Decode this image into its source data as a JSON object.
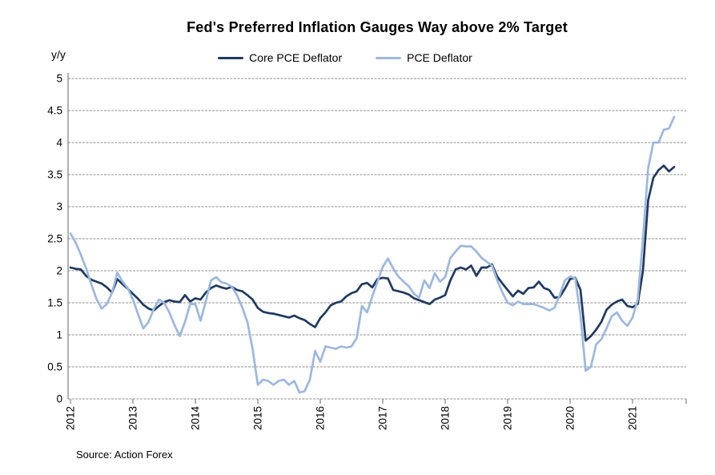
{
  "chart_data": {
    "type": "line",
    "title": "Fed's Preferred Inflation Gauges Way above 2% Target",
    "y_axis_label": "y/y",
    "source": "Source: Action Forex",
    "ylim": [
      0,
      5
    ],
    "y_ticks": [
      "0",
      "0.5",
      "1",
      "1.5",
      "2",
      "2.5",
      "3",
      "3.5",
      "4",
      "4.5",
      "5"
    ],
    "x_ticks": [
      "2012",
      "2013",
      "2014",
      "2015",
      "2016",
      "2017",
      "2018",
      "2019",
      "2020",
      "2021"
    ],
    "x_start": "2012-01",
    "frequency": "monthly",
    "grid": true,
    "legend_position": "top-center",
    "background_color": "#ffffff",
    "series": [
      {
        "name": "Core PCE Deflator",
        "color": "#1F3A5F",
        "values": [
          2.05,
          2.03,
          2.02,
          1.92,
          1.86,
          1.83,
          1.8,
          1.74,
          1.66,
          1.87,
          1.79,
          1.72,
          1.64,
          1.56,
          1.47,
          1.41,
          1.38,
          1.45,
          1.51,
          1.54,
          1.52,
          1.51,
          1.62,
          1.52,
          1.57,
          1.55,
          1.66,
          1.73,
          1.77,
          1.74,
          1.72,
          1.75,
          1.7,
          1.68,
          1.62,
          1.55,
          1.42,
          1.36,
          1.34,
          1.33,
          1.31,
          1.29,
          1.27,
          1.3,
          1.26,
          1.23,
          1.17,
          1.12,
          1.26,
          1.35,
          1.46,
          1.5,
          1.52,
          1.6,
          1.65,
          1.68,
          1.79,
          1.81,
          1.74,
          1.87,
          1.89,
          1.88,
          1.7,
          1.68,
          1.66,
          1.63,
          1.57,
          1.54,
          1.51,
          1.48,
          1.55,
          1.58,
          1.62,
          1.85,
          2.02,
          2.05,
          2.02,
          2.08,
          1.92,
          2.05,
          2.05,
          2.1,
          1.91,
          1.8,
          1.7,
          1.6,
          1.69,
          1.64,
          1.73,
          1.74,
          1.83,
          1.73,
          1.7,
          1.58,
          1.59,
          1.72,
          1.87,
          1.89,
          1.7,
          0.91,
          0.98,
          1.08,
          1.2,
          1.39,
          1.47,
          1.52,
          1.55,
          1.45,
          1.43,
          1.48,
          2.0,
          3.1,
          3.45,
          3.57,
          3.64,
          3.55,
          3.62
        ]
      },
      {
        "name": "PCE Deflator",
        "color": "#9CB8DE",
        "values": [
          2.58,
          2.44,
          2.25,
          2.04,
          1.79,
          1.56,
          1.41,
          1.48,
          1.66,
          1.97,
          1.83,
          1.73,
          1.55,
          1.32,
          1.1,
          1.2,
          1.4,
          1.55,
          1.5,
          1.35,
          1.15,
          0.98,
          1.2,
          1.48,
          1.48,
          1.22,
          1.52,
          1.85,
          1.9,
          1.82,
          1.8,
          1.75,
          1.62,
          1.43,
          1.2,
          0.78,
          0.22,
          0.3,
          0.28,
          0.22,
          0.28,
          0.3,
          0.22,
          0.28,
          0.1,
          0.12,
          0.3,
          0.75,
          0.58,
          0.82,
          0.8,
          0.78,
          0.82,
          0.8,
          0.82,
          0.95,
          1.45,
          1.35,
          1.6,
          1.83,
          2.06,
          2.19,
          2.04,
          1.91,
          1.83,
          1.76,
          1.64,
          1.58,
          1.85,
          1.73,
          1.96,
          1.83,
          1.9,
          2.2,
          2.3,
          2.39,
          2.38,
          2.38,
          2.3,
          2.2,
          2.14,
          2.08,
          1.85,
          1.66,
          1.5,
          1.46,
          1.52,
          1.48,
          1.48,
          1.48,
          1.45,
          1.42,
          1.38,
          1.42,
          1.62,
          1.85,
          1.91,
          1.88,
          1.3,
          0.44,
          0.5,
          0.85,
          0.93,
          1.1,
          1.29,
          1.35,
          1.22,
          1.14,
          1.27,
          1.55,
          2.5,
          3.6,
          4.0,
          4.0,
          4.2,
          4.22,
          4.4
        ]
      }
    ]
  }
}
